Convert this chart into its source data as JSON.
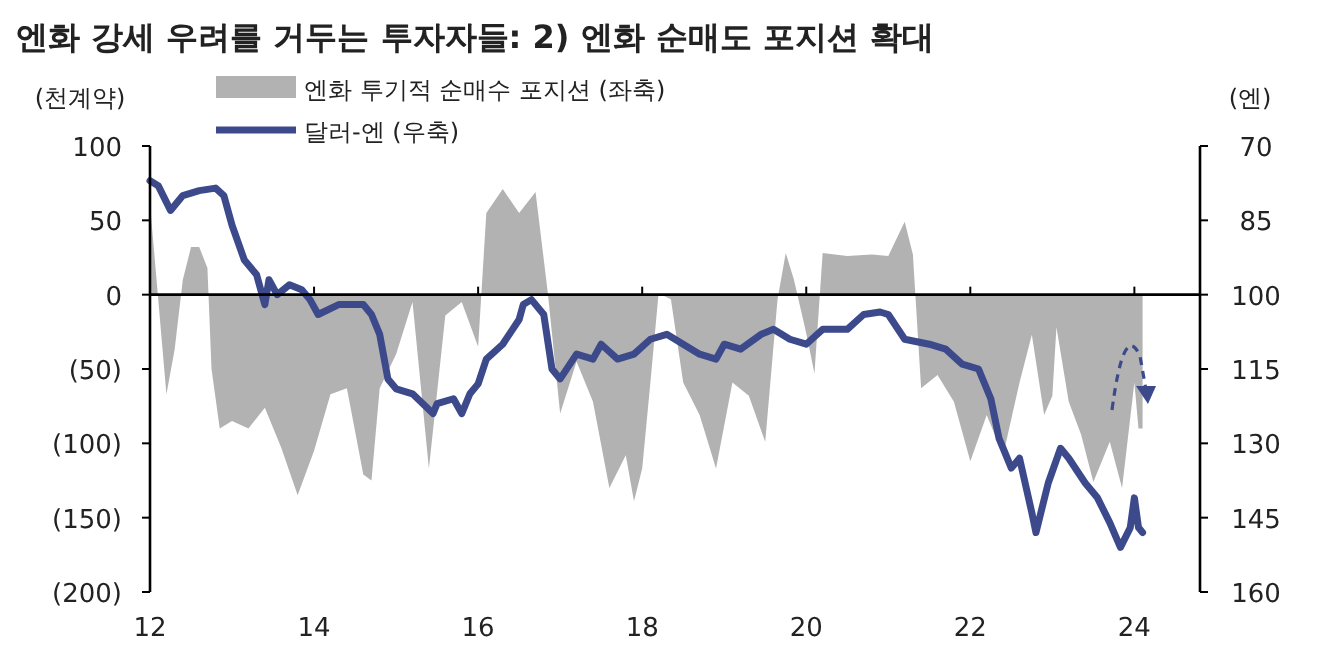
{
  "chart_data": {
    "type": "line",
    "title": "엔화 강세 우려를 거두는 투자자들: 2) 엔화 순매도 포지션 확대",
    "ylabel": "(천계약)",
    "y2label": "(엔)",
    "legend": "top",
    "xlim": [
      2012,
      2024.8
    ],
    "xticks": [
      {
        "value": 2012,
        "label": "12"
      },
      {
        "value": 2014,
        "label": "14"
      },
      {
        "value": 2016,
        "label": "16"
      },
      {
        "value": 2018,
        "label": "18"
      },
      {
        "value": 2020,
        "label": "20"
      },
      {
        "value": 2022,
        "label": "22"
      },
      {
        "value": 2024,
        "label": "24"
      }
    ],
    "ylim": [
      -200,
      100
    ],
    "yticks": [
      100,
      50,
      0,
      {
        "value": -50,
        "label": "(50)"
      },
      {
        "value": -100,
        "label": "(100)"
      },
      {
        "value": -150,
        "label": "(150)"
      },
      {
        "value": -200,
        "label": "(200)"
      }
    ],
    "y2lim": [
      160,
      70
    ],
    "y2ticks": [
      70,
      85,
      100,
      115,
      130,
      145,
      160
    ],
    "series": [
      {
        "name": "엔화 투기적 순매수 포지션 (좌축)",
        "type": "area",
        "color": "#b2b2b2",
        "x": [
          2012.0,
          2012.1,
          2012.2,
          2012.3,
          2012.4,
          2012.5,
          2012.6,
          2012.7,
          2012.75,
          2012.85,
          2013.0,
          2013.2,
          2013.4,
          2013.6,
          2013.8,
          2014.0,
          2014.2,
          2014.4,
          2014.6,
          2014.7,
          2014.8,
          2015.0,
          2015.2,
          2015.4,
          2015.6,
          2015.8,
          2016.0,
          2016.1,
          2016.3,
          2016.5,
          2016.7,
          2016.85,
          2017.0,
          2017.2,
          2017.4,
          2017.6,
          2017.8,
          2017.9,
          2018.0,
          2018.1,
          2018.2,
          2018.35,
          2018.5,
          2018.7,
          2018.9,
          2019.1,
          2019.3,
          2019.5,
          2019.65,
          2019.75,
          2019.85,
          2020.0,
          2020.1,
          2020.2,
          2020.5,
          2020.8,
          2021.0,
          2021.2,
          2021.3,
          2021.4,
          2021.6,
          2021.8,
          2022.0,
          2022.2,
          2022.4,
          2022.6,
          2022.75,
          2022.9,
          2023.0,
          2023.05,
          2023.2,
          2023.35,
          2023.5,
          2023.7,
          2023.85,
          2024.0,
          2024.05,
          2024.1
        ],
        "values": [
          61,
          -3,
          -67,
          -37,
          10,
          32,
          32,
          18,
          -50,
          -90,
          -85,
          -90,
          -76,
          -103,
          -135,
          -105,
          -67,
          -63,
          -121,
          -125,
          -63,
          -40,
          -5,
          -117,
          -14,
          -5,
          -35,
          55,
          71,
          55,
          69,
          1,
          -80,
          -45,
          -72,
          -130,
          -108,
          -139,
          -117,
          -59,
          1,
          -3,
          -59,
          -81,
          -117,
          -59,
          -68,
          -99,
          -3,
          28,
          10,
          -26,
          -53,
          28,
          26,
          27,
          26,
          49,
          27,
          -63,
          -54,
          -72,
          -112,
          -81,
          -108,
          -59,
          -27,
          -81,
          -68,
          -22,
          -72,
          -94,
          -126,
          -99,
          -130,
          -59,
          -90,
          -90
        ]
      },
      {
        "name": "달러-엔 (우축)",
        "axis": "y2",
        "color": "#3c4a8c",
        "x": [
          2012.0,
          2012.1,
          2012.25,
          2012.4,
          2012.6,
          2012.8,
          2012.9,
          2013.0,
          2013.15,
          2013.3,
          2013.4,
          2013.45,
          2013.55,
          2013.7,
          2013.85,
          2013.95,
          2014.05,
          2014.3,
          2014.6,
          2014.7,
          2014.8,
          2014.9,
          2015.0,
          2015.2,
          2015.45,
          2015.5,
          2015.7,
          2015.8,
          2015.9,
          2016.0,
          2016.1,
          2016.3,
          2016.5,
          2016.55,
          2016.65,
          2016.8,
          2016.9,
          2017.0,
          2017.2,
          2017.4,
          2017.5,
          2017.7,
          2017.9,
          2018.1,
          2018.3,
          2018.5,
          2018.7,
          2018.9,
          2019.0,
          2019.2,
          2019.45,
          2019.6,
          2019.8,
          2020.0,
          2020.2,
          2020.5,
          2020.7,
          2020.9,
          2021.0,
          2021.2,
          2021.5,
          2021.7,
          2021.9,
          2022.1,
          2022.25,
          2022.35,
          2022.5,
          2022.6,
          2022.75,
          2022.8,
          2022.95,
          2023.1,
          2023.2,
          2023.4,
          2023.55,
          2023.7,
          2023.83,
          2023.95,
          2024.0,
          2024.05,
          2024.1
        ],
        "values": [
          77,
          78,
          83,
          80,
          79,
          78.5,
          80,
          86,
          93,
          96,
          102,
          97,
          100,
          98,
          99,
          101,
          104,
          102,
          102,
          104,
          108,
          117,
          119,
          120,
          124,
          122,
          121,
          124,
          120,
          118,
          113,
          110,
          105,
          102,
          101,
          104,
          115,
          117,
          112,
          113,
          110,
          113,
          112,
          109,
          108,
          110,
          112,
          113,
          110,
          111,
          108,
          107,
          109,
          110,
          107,
          107,
          104,
          103.5,
          104,
          109,
          110,
          111,
          114,
          115,
          121,
          129,
          135,
          133,
          144,
          148,
          138,
          131,
          133,
          138,
          141,
          146,
          151,
          147,
          141,
          147,
          148
        ]
      }
    ]
  }
}
